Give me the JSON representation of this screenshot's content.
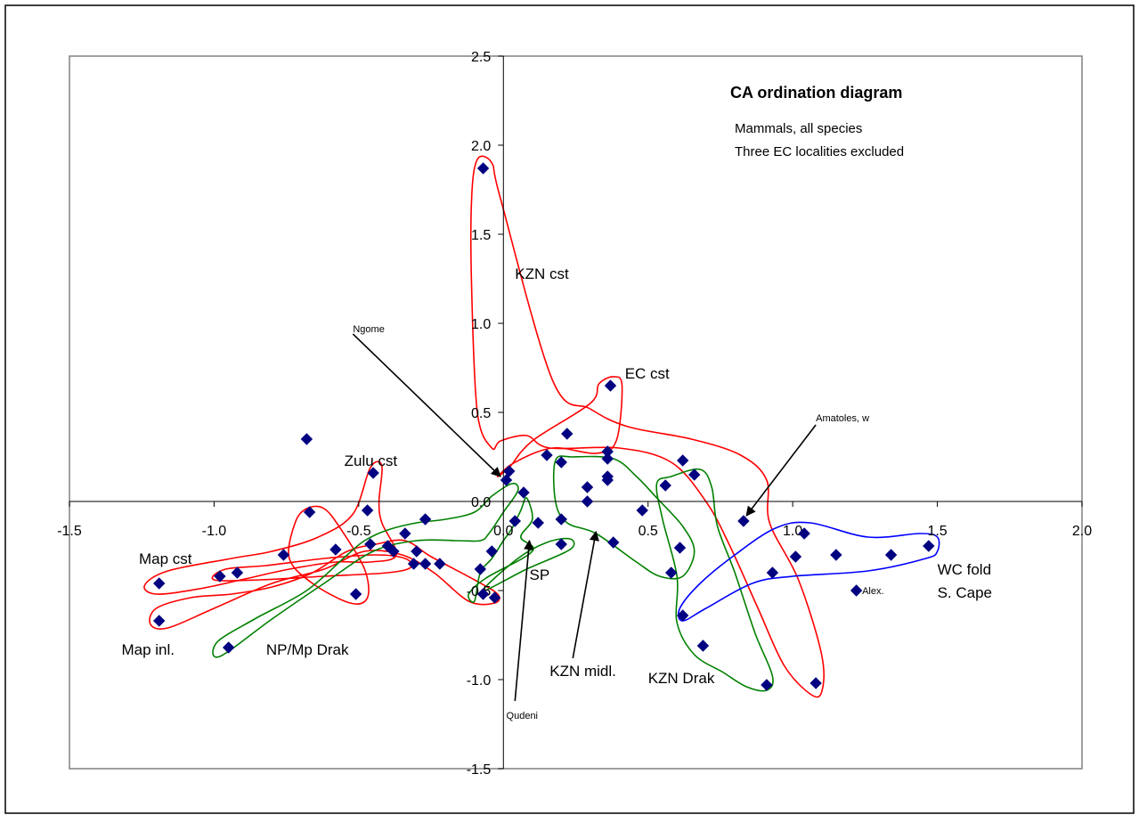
{
  "chart_data": {
    "type": "scatter",
    "title": "CA ordination diagram",
    "subtitle_lines": [
      "Mammals, all species",
      "Three EC localities excluded"
    ],
    "xlim": [
      -1.5,
      2.0
    ],
    "ylim": [
      -1.5,
      2.5
    ],
    "x_ticks": [
      -1.5,
      -1.0,
      -0.5,
      0.0,
      0.5,
      1.0,
      1.5,
      2.0
    ],
    "y_ticks": [
      -1.5,
      -1.0,
      -0.5,
      0.0,
      0.5,
      1.0,
      1.5,
      2.0,
      2.5
    ],
    "x_tick_labels": [
      "-1.5",
      "-1.0",
      "-0.5",
      "0.0",
      "0.5",
      "1.0",
      "1.5",
      "2.0"
    ],
    "y_tick_labels": [
      "-1.5",
      "-1.0",
      "-0.5",
      "0.0",
      "0.5",
      "1.0",
      "1.5",
      "2.0",
      "2.5"
    ],
    "grid": false,
    "marker": "diamond",
    "marker_color": "#000080",
    "points": [
      [
        -0.07,
        1.87
      ],
      [
        0.37,
        0.65
      ],
      [
        0.22,
        0.38
      ],
      [
        0.36,
        0.28
      ],
      [
        0.36,
        0.24
      ],
      [
        0.15,
        0.26
      ],
      [
        0.2,
        0.22
      ],
      [
        0.02,
        0.17
      ],
      [
        0.01,
        0.12
      ],
      [
        0.36,
        0.14
      ],
      [
        0.36,
        0.12
      ],
      [
        0.29,
        0.08
      ],
      [
        0.07,
        0.05
      ],
      [
        0.29,
        0.0
      ],
      [
        0.04,
        -0.11
      ],
      [
        0.12,
        -0.12
      ],
      [
        0.2,
        -0.1
      ],
      [
        0.48,
        -0.05
      ],
      [
        0.38,
        -0.23
      ],
      [
        0.2,
        -0.24
      ],
      [
        -0.07,
        -0.52
      ],
      [
        -0.03,
        -0.54
      ],
      [
        -0.08,
        -0.38
      ],
      [
        -0.04,
        -0.28
      ],
      [
        -0.22,
        -0.35
      ],
      [
        -0.27,
        -0.35
      ],
      [
        -0.31,
        -0.35
      ],
      [
        -0.3,
        -0.28
      ],
      [
        -0.27,
        -0.1
      ],
      [
        -0.34,
        -0.18
      ],
      [
        -0.38,
        -0.28
      ],
      [
        -0.4,
        -0.25
      ],
      [
        -0.47,
        -0.05
      ],
      [
        -0.46,
        -0.24
      ],
      [
        -0.51,
        -0.52
      ],
      [
        -0.58,
        -0.27
      ],
      [
        -0.67,
        -0.06
      ],
      [
        -0.76,
        -0.3
      ],
      [
        -0.92,
        -0.4
      ],
      [
        -0.98,
        -0.42
      ],
      [
        -0.68,
        0.35
      ],
      [
        -0.45,
        0.16
      ],
      [
        -1.19,
        -0.46
      ],
      [
        -1.19,
        -0.67
      ],
      [
        -0.95,
        -0.82
      ],
      [
        0.62,
        0.23
      ],
      [
        0.66,
        0.15
      ],
      [
        0.56,
        0.09
      ],
      [
        0.61,
        -0.26
      ],
      [
        0.58,
        -0.4
      ],
      [
        0.62,
        -0.64
      ],
      [
        0.69,
        -0.81
      ],
      [
        0.83,
        -0.11
      ],
      [
        0.91,
        -1.03
      ],
      [
        0.93,
        -0.4
      ],
      [
        1.01,
        -0.31
      ],
      [
        1.04,
        -0.18
      ],
      [
        1.08,
        -1.02
      ],
      [
        1.15,
        -0.3
      ],
      [
        1.22,
        -0.5
      ],
      [
        1.34,
        -0.3
      ],
      [
        1.47,
        -0.25
      ]
    ],
    "group_labels": [
      {
        "text": "KZN cst",
        "x": 0.04,
        "y": 1.25
      },
      {
        "text": "EC cst",
        "x": 0.42,
        "y": 0.69
      },
      {
        "text": "Zulu cst",
        "x": -0.55,
        "y": 0.2
      },
      {
        "text": "Map cst",
        "x": -1.26,
        "y": -0.35
      },
      {
        "text": "Map inl.",
        "x": -1.32,
        "y": -0.86
      },
      {
        "text": "NP/Mp Drak",
        "x": -0.82,
        "y": -0.86
      },
      {
        "text": "SP",
        "x": 0.09,
        "y": -0.44
      },
      {
        "text": "KZN midl.",
        "x": 0.16,
        "y": -0.98
      },
      {
        "text": "KZN Drak",
        "x": 0.5,
        "y": -1.02
      },
      {
        "text": "WC fold",
        "x": 1.5,
        "y": -0.41
      },
      {
        "text": "S. Cape",
        "x": 1.5,
        "y": -0.54
      }
    ],
    "annotations": [
      {
        "text": "Ngome",
        "x": -0.52,
        "y": 0.95
      },
      {
        "text": "Amatoles, w",
        "x": 1.08,
        "y": 0.45
      },
      {
        "text": "Qudeni",
        "x": 0.01,
        "y": -1.22
      },
      {
        "text": "Alex.",
        "x": 1.24,
        "y": -0.52
      }
    ],
    "hulls": [
      {
        "color": "#ff0000",
        "points": [
          [
            -0.09,
            1.92
          ],
          [
            -0.04,
            1.9
          ],
          [
            -0.01,
            1.7
          ],
          [
            0.17,
            0.68
          ],
          [
            0.3,
            0.52
          ],
          [
            0.43,
            0.42
          ],
          [
            0.65,
            0.35
          ],
          [
            0.82,
            0.26
          ],
          [
            0.91,
            0.12
          ],
          [
            0.92,
            -0.12
          ],
          [
            1.02,
            -0.44
          ],
          [
            1.1,
            -0.86
          ],
          [
            1.1,
            -1.07
          ],
          [
            1.06,
            -1.08
          ],
          [
            0.97,
            -0.92
          ],
          [
            0.88,
            -0.6
          ],
          [
            0.78,
            -0.24
          ],
          [
            0.7,
            0.0
          ],
          [
            0.58,
            0.22
          ],
          [
            0.4,
            0.3
          ],
          [
            0.16,
            0.3
          ],
          [
            0.08,
            0.37
          ],
          [
            -0.01,
            0.34
          ],
          [
            -0.04,
            0.3
          ],
          [
            -0.09,
            0.5
          ],
          [
            -0.11,
            1.2
          ],
          [
            -0.11,
            1.7
          ]
        ]
      },
      {
        "color": "#ff0000",
        "points": [
          [
            0.33,
            0.66
          ],
          [
            0.38,
            0.7
          ],
          [
            0.41,
            0.65
          ],
          [
            0.39,
            0.34
          ],
          [
            0.32,
            0.27
          ],
          [
            0.17,
            0.3
          ],
          [
            0.04,
            0.22
          ],
          [
            -0.02,
            0.14
          ],
          [
            0.02,
            0.19
          ],
          [
            0.1,
            0.34
          ],
          [
            0.3,
            0.55
          ]
        ]
      },
      {
        "color": "#ff0000",
        "points": [
          [
            -0.46,
            0.19
          ],
          [
            -0.42,
            0.2
          ],
          [
            -0.43,
            0.0
          ],
          [
            -0.42,
            -0.12
          ],
          [
            -0.37,
            -0.3
          ],
          [
            -0.46,
            -0.34
          ],
          [
            -0.58,
            -0.34
          ],
          [
            -0.74,
            -0.38
          ],
          [
            -0.88,
            -0.43
          ],
          [
            -1.05,
            -0.49
          ],
          [
            -1.2,
            -0.52
          ],
          [
            -1.24,
            -0.47
          ],
          [
            -1.16,
            -0.39
          ],
          [
            -0.94,
            -0.32
          ],
          [
            -0.8,
            -0.28
          ],
          [
            -0.64,
            -0.2
          ],
          [
            -0.52,
            -0.07
          ]
        ]
      },
      {
        "color": "#ff0000",
        "points": [
          [
            -1.16,
            -0.71
          ],
          [
            -1.22,
            -0.69
          ],
          [
            -1.2,
            -0.6
          ],
          [
            -1.08,
            -0.54
          ],
          [
            -0.94,
            -0.52
          ],
          [
            -0.8,
            -0.48
          ],
          [
            -0.66,
            -0.4
          ],
          [
            -0.54,
            -0.28
          ],
          [
            -0.44,
            -0.24
          ],
          [
            -0.34,
            -0.22
          ],
          [
            -0.25,
            -0.31
          ],
          [
            -0.1,
            -0.44
          ],
          [
            -0.02,
            -0.52
          ],
          [
            -0.03,
            -0.57
          ],
          [
            -0.12,
            -0.56
          ],
          [
            -0.24,
            -0.4
          ],
          [
            -0.35,
            -0.3
          ],
          [
            -0.48,
            -0.28
          ],
          [
            -0.62,
            -0.38
          ],
          [
            -0.8,
            -0.46
          ],
          [
            -1.0,
            -0.6
          ]
        ]
      },
      {
        "color": "#ff0000",
        "points": [
          [
            -0.68,
            -0.04
          ],
          [
            -0.62,
            -0.04
          ],
          [
            -0.56,
            -0.16
          ],
          [
            -0.48,
            -0.38
          ],
          [
            -0.47,
            -0.54
          ],
          [
            -0.53,
            -0.57
          ],
          [
            -0.66,
            -0.46
          ],
          [
            -0.74,
            -0.32
          ],
          [
            -0.72,
            -0.12
          ]
        ]
      },
      {
        "color": "#ff0000",
        "points": [
          [
            -0.96,
            -0.38
          ],
          [
            -0.82,
            -0.36
          ],
          [
            -0.62,
            -0.32
          ],
          [
            -0.44,
            -0.3
          ],
          [
            -0.34,
            -0.32
          ],
          [
            -0.32,
            -0.37
          ],
          [
            -0.4,
            -0.4
          ],
          [
            -0.62,
            -0.42
          ],
          [
            -0.84,
            -0.44
          ],
          [
            -1.0,
            -0.44
          ]
        ]
      },
      {
        "color": "#008000",
        "points": [
          [
            -0.98,
            -0.87
          ],
          [
            -0.99,
            -0.79
          ],
          [
            -0.86,
            -0.66
          ],
          [
            -0.68,
            -0.5
          ],
          [
            -0.54,
            -0.3
          ],
          [
            -0.48,
            -0.22
          ],
          [
            -0.4,
            -0.16
          ],
          [
            -0.3,
            -0.12
          ],
          [
            -0.2,
            -0.1
          ],
          [
            -0.1,
            -0.06
          ],
          [
            -0.04,
            0.03
          ],
          [
            0.03,
            0.1
          ],
          [
            0.05,
            0.06
          ],
          [
            0.0,
            -0.06
          ],
          [
            -0.05,
            -0.18
          ],
          [
            -0.08,
            -0.22
          ],
          [
            -0.16,
            -0.22
          ],
          [
            -0.3,
            -0.22
          ],
          [
            -0.45,
            -0.28
          ],
          [
            -0.62,
            -0.46
          ],
          [
            -0.8,
            -0.66
          ]
        ]
      },
      {
        "color": "#008000",
        "points": [
          [
            -0.1,
            -0.56
          ],
          [
            -0.12,
            -0.52
          ],
          [
            -0.06,
            -0.43
          ],
          [
            0.1,
            -0.28
          ],
          [
            0.06,
            -0.2
          ],
          [
            0.1,
            -0.1
          ],
          [
            0.08,
            0.02
          ],
          [
            0.06,
            -0.05
          ],
          [
            0.03,
            -0.15
          ],
          [
            0.0,
            -0.22
          ],
          [
            -0.04,
            -0.32
          ],
          [
            -0.08,
            -0.4
          ]
        ]
      },
      {
        "color": "#008000",
        "points": [
          [
            -0.07,
            -0.5
          ],
          [
            0.08,
            -0.38
          ],
          [
            0.23,
            -0.27
          ],
          [
            0.23,
            -0.21
          ],
          [
            0.15,
            -0.23
          ],
          [
            0.05,
            -0.32
          ]
        ]
      },
      {
        "color": "#008000",
        "points": [
          [
            0.18,
            0.23
          ],
          [
            0.24,
            0.25
          ],
          [
            0.38,
            0.24
          ],
          [
            0.46,
            0.14
          ],
          [
            0.53,
            0.02
          ],
          [
            0.62,
            -0.14
          ],
          [
            0.66,
            -0.28
          ],
          [
            0.62,
            -0.42
          ],
          [
            0.54,
            -0.42
          ],
          [
            0.46,
            -0.34
          ],
          [
            0.32,
            -0.18
          ],
          [
            0.22,
            -0.12
          ],
          [
            0.18,
            0.0
          ]
        ]
      },
      {
        "color": "#008000",
        "points": [
          [
            0.53,
            0.1
          ],
          [
            0.58,
            0.14
          ],
          [
            0.68,
            0.18
          ],
          [
            0.72,
            0.08
          ],
          [
            0.74,
            -0.14
          ],
          [
            0.8,
            -0.4
          ],
          [
            0.87,
            -0.74
          ],
          [
            0.93,
            -0.98
          ],
          [
            0.91,
            -1.06
          ],
          [
            0.84,
            -1.04
          ],
          [
            0.76,
            -0.96
          ],
          [
            0.66,
            -0.86
          ],
          [
            0.6,
            -0.68
          ],
          [
            0.6,
            -0.42
          ],
          [
            0.55,
            -0.1
          ]
        ]
      },
      {
        "color": "#0000ff",
        "points": [
          [
            0.61,
            -0.6
          ],
          [
            0.62,
            -0.67
          ],
          [
            0.7,
            -0.6
          ],
          [
            0.86,
            -0.46
          ],
          [
            1.0,
            -0.42
          ],
          [
            1.26,
            -0.39
          ],
          [
            1.46,
            -0.32
          ],
          [
            1.5,
            -0.28
          ],
          [
            1.5,
            -0.2
          ],
          [
            1.44,
            -0.18
          ],
          [
            1.26,
            -0.2
          ],
          [
            1.06,
            -0.12
          ],
          [
            0.94,
            -0.15
          ],
          [
            0.8,
            -0.3
          ],
          [
            0.68,
            -0.46
          ]
        ]
      }
    ],
    "arrows": [
      {
        "from": [
          -0.52,
          0.94
        ],
        "to": [
          -0.01,
          0.14
        ]
      },
      {
        "from": [
          1.08,
          0.43
        ],
        "to": [
          0.84,
          -0.08
        ]
      },
      {
        "from": [
          0.04,
          -1.12
        ],
        "to": [
          0.09,
          -0.22
        ]
      },
      {
        "from": [
          0.24,
          -0.88
        ],
        "to": [
          0.32,
          -0.17
        ]
      }
    ]
  }
}
